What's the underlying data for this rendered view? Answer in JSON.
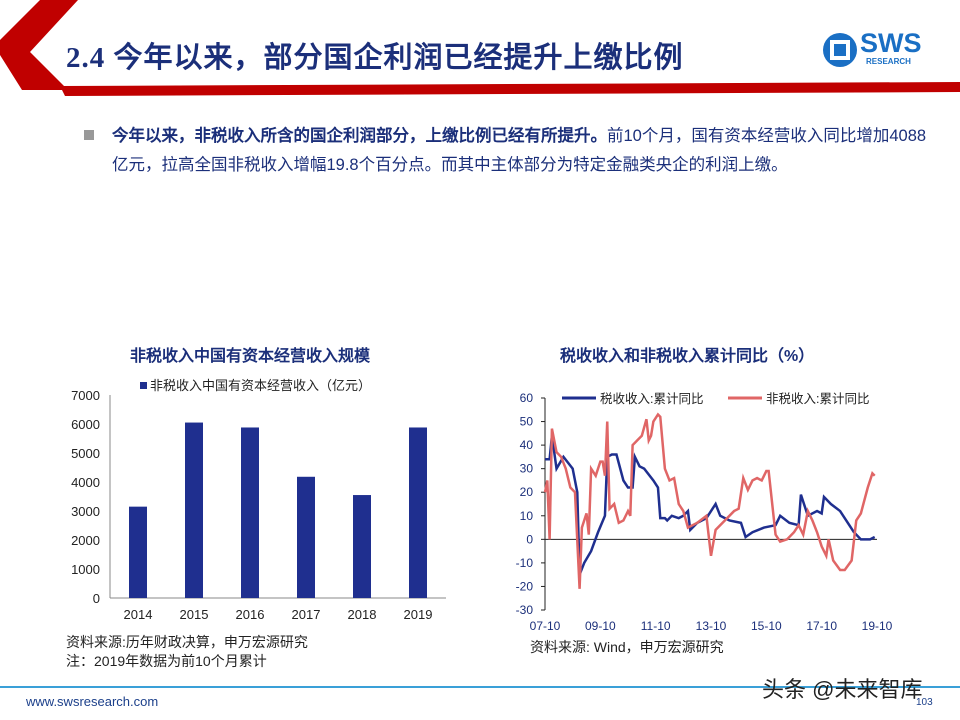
{
  "header": {
    "title": "2.4 今年以来，部分国企利润已经提升上缴比例",
    "logo_text": "SWS",
    "logo_sub": "RESEARCH"
  },
  "body": {
    "bold": "今年以来，非税收入所含的国企利润部分，上缴比例已经有所提升。",
    "rest": "前10个月，国有资本经营收入同比增加4088亿元，拉高全国非税收入增幅19.8个百分点。而其中主体部分为特定金融类央企的利润上缴。"
  },
  "chart_data": [
    {
      "type": "bar",
      "title": "非税收入中国有资本经营收入规模",
      "legend": "非税收入中国有资本经营收入（亿元）",
      "categories": [
        "2014",
        "2015",
        "2016",
        "2017",
        "2018",
        "2019"
      ],
      "values": [
        3150,
        6050,
        5880,
        4180,
        3550,
        5880
      ],
      "ylim": [
        0,
        7000
      ],
      "yticks": [
        "0",
        "1000",
        "2000",
        "3000",
        "4000",
        "5000",
        "6000",
        "7000"
      ],
      "color": "#1f2f8f",
      "source": "资料来源:历年财政决算，申万宏源研究",
      "note": "注：2019年数据为前10个月累计"
    },
    {
      "type": "line",
      "title": "税收收入和非税收入累计同比（%）",
      "ylim": [
        -30,
        60
      ],
      "yticks": [
        "60",
        "50",
        "40",
        "30",
        "20",
        "10",
        "0",
        "-10",
        "-20",
        "-30"
      ],
      "xticks": [
        "07-10",
        "09-10",
        "11-10",
        "13-10",
        "15-10",
        "17-10",
        "19-10"
      ],
      "x_unit": "months since 2007-10",
      "series": [
        {
          "name": "税收收入:累计同比",
          "color": "#1f2f8f",
          "points": [
            [
              0,
              34
            ],
            [
              2,
              34
            ],
            [
              3,
              44
            ],
            [
              5,
              30
            ],
            [
              8,
              35
            ],
            [
              12,
              30
            ],
            [
              14,
              20
            ],
            [
              15,
              -15
            ],
            [
              17,
              -10
            ],
            [
              20,
              -5
            ],
            [
              23,
              3
            ],
            [
              26,
              10
            ],
            [
              27,
              35
            ],
            [
              29,
              36
            ],
            [
              31,
              36
            ],
            [
              34,
              25
            ],
            [
              36,
              22
            ],
            [
              38,
              22
            ],
            [
              39,
              35
            ],
            [
              41,
              31
            ],
            [
              43,
              30
            ],
            [
              47,
              25
            ],
            [
              49,
              22
            ],
            [
              50,
              9
            ],
            [
              52,
              9
            ],
            [
              53,
              8
            ],
            [
              55,
              10
            ],
            [
              58,
              9
            ],
            [
              60,
              10
            ],
            [
              62,
              12
            ],
            [
              63,
              4
            ],
            [
              66,
              7
            ],
            [
              70,
              9
            ],
            [
              74,
              15
            ],
            [
              76,
              10
            ],
            [
              80,
              8
            ],
            [
              85,
              7
            ],
            [
              87,
              1
            ],
            [
              90,
              3
            ],
            [
              95,
              5
            ],
            [
              100,
              6
            ],
            [
              102,
              10
            ],
            [
              106,
              7
            ],
            [
              110,
              6
            ],
            [
              111,
              19
            ],
            [
              114,
              10
            ],
            [
              118,
              12
            ],
            [
              120,
              11
            ],
            [
              121,
              18
            ],
            [
              124,
              15
            ],
            [
              128,
              12
            ],
            [
              132,
              6
            ],
            [
              134,
              3
            ],
            [
              137,
              0
            ],
            [
              141,
              0
            ],
            [
              143,
              1
            ]
          ]
        },
        {
          "name": "非税收入:累计同比",
          "color": "#e06666",
          "points": [
            [
              0,
              20
            ],
            [
              1,
              25
            ],
            [
              2,
              0
            ],
            [
              3,
              47
            ],
            [
              5,
              37
            ],
            [
              7,
              35
            ],
            [
              9,
              30
            ],
            [
              11,
              22
            ],
            [
              13,
              20
            ],
            [
              15,
              -21
            ],
            [
              16,
              5
            ],
            [
              18,
              11
            ],
            [
              19,
              2
            ],
            [
              20,
              30
            ],
            [
              22,
              27
            ],
            [
              24,
              33
            ],
            [
              25,
              33
            ],
            [
              26,
              27
            ],
            [
              27,
              50
            ],
            [
              28,
              13
            ],
            [
              30,
              15
            ],
            [
              32,
              7
            ],
            [
              34,
              8
            ],
            [
              36,
              12
            ],
            [
              37,
              10
            ],
            [
              38,
              40
            ],
            [
              40,
              42
            ],
            [
              42,
              44
            ],
            [
              44,
              51
            ],
            [
              45,
              42
            ],
            [
              46,
              44
            ],
            [
              47,
              50
            ],
            [
              49,
              53
            ],
            [
              50,
              52
            ],
            [
              52,
              30
            ],
            [
              54,
              25
            ],
            [
              56,
              26
            ],
            [
              58,
              15
            ],
            [
              60,
              12
            ],
            [
              62,
              5
            ],
            [
              66,
              7
            ],
            [
              70,
              10
            ],
            [
              72,
              -7
            ],
            [
              74,
              4
            ],
            [
              78,
              8
            ],
            [
              82,
              12
            ],
            [
              84,
              13
            ],
            [
              86,
              26
            ],
            [
              88,
              21
            ],
            [
              90,
              25
            ],
            [
              92,
              26
            ],
            [
              94,
              25
            ],
            [
              96,
              29
            ],
            [
              97,
              29
            ],
            [
              100,
              2
            ],
            [
              102,
              -1
            ],
            [
              105,
              0
            ],
            [
              108,
              3
            ],
            [
              110,
              6
            ],
            [
              112,
              2
            ],
            [
              114,
              12
            ],
            [
              116,
              8
            ],
            [
              118,
              3
            ],
            [
              120,
              -3
            ],
            [
              122,
              -7
            ],
            [
              123,
              0
            ],
            [
              125,
              -9
            ],
            [
              128,
              -13
            ],
            [
              130,
              -13
            ],
            [
              133,
              -9
            ],
            [
              135,
              8
            ],
            [
              137,
              11
            ],
            [
              140,
              22
            ],
            [
              142,
              28
            ],
            [
              143,
              27
            ]
          ]
        }
      ],
      "source": "资料来源: Wind，申万宏源研究"
    }
  ],
  "footer": {
    "url": "www.swsresearch.com",
    "watermark": "头条 @未来智库",
    "page": "103"
  }
}
